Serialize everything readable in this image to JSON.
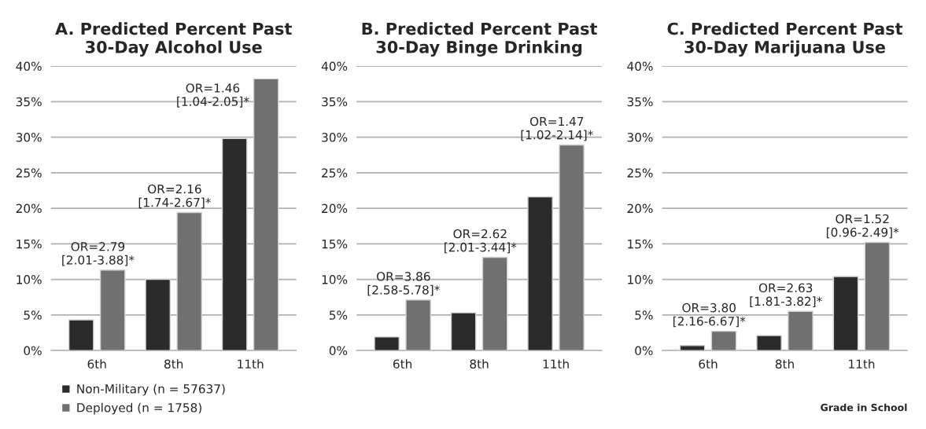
{
  "chart_data": [
    {
      "type": "bar",
      "title": "A. Predicted Percent Past\n30-Day Alcohol Use",
      "categories": [
        "6th",
        "8th",
        "11th"
      ],
      "series": [
        {
          "name": "Non-Military (n = 57637)",
          "color": "#2b2b2b",
          "values": [
            4.3,
            10.0,
            29.8
          ]
        },
        {
          "name": "Deployed (n = 1758)",
          "color": "#707070",
          "values": [
            11.3,
            19.4,
            38.2
          ]
        }
      ],
      "ylim": [
        0,
        40
      ],
      "yticks": [
        {
          "value": 0,
          "label": "0%"
        },
        {
          "value": 5,
          "label": "5%"
        },
        {
          "value": 10,
          "label": "10%"
        },
        {
          "value": 15,
          "label": "15%"
        },
        {
          "value": 20,
          "label": "20%"
        },
        {
          "value": 25,
          "label": "25%"
        },
        {
          "value": 30,
          "label": "30%"
        },
        {
          "value": 35,
          "label": "35%"
        },
        {
          "value": 40,
          "label": "40%"
        }
      ],
      "grid": "y",
      "legend": "bottom left",
      "annotations": [
        {
          "text": "OR=2.79\n[2.01-3.88]*",
          "x": "6th",
          "y": 11.3
        },
        {
          "text": "OR=2.16\n[1.74-2.67]*",
          "x": "8th",
          "y": 19.4
        },
        {
          "text": "OR=1.46\n[1.04-2.05]*",
          "x": "11th",
          "y": 38.2
        }
      ]
    },
    {
      "type": "bar",
      "title": "B. Predicted Percent Past\n30-Day Binge Drinking",
      "categories": [
        "6th",
        "8th",
        "11th"
      ],
      "series": [
        {
          "color": "#2b2b2b",
          "values": [
            1.9,
            5.3,
            21.6
          ]
        },
        {
          "color": "#707070",
          "values": [
            7.1,
            13.1,
            28.9
          ]
        }
      ],
      "ylim": [
        0,
        40
      ],
      "yticks": [
        {
          "value": 0,
          "label": "0%"
        },
        {
          "value": 5,
          "label": "5%"
        },
        {
          "value": 10,
          "label": "10%"
        },
        {
          "value": 15,
          "label": "15%"
        },
        {
          "value": 20,
          "label": "20%"
        },
        {
          "value": 25,
          "label": "25%"
        },
        {
          "value": 30,
          "label": "30%"
        },
        {
          "value": 35,
          "label": "35%"
        },
        {
          "value": 40,
          "label": "40%"
        }
      ],
      "grid": "y",
      "annotations": [
        {
          "text": "OR=3.86\n[2.58-5.78]*",
          "x": "6th",
          "y": 7.1
        },
        {
          "text": "OR=2.62\n[2.01-3.44]*",
          "x": "8th",
          "y": 13.1
        },
        {
          "text": "OR=1.47\n[1.02-2.14]*",
          "x": "11th",
          "y": 28.9
        }
      ]
    },
    {
      "type": "bar",
      "title": "C. Predicted Percent Past\n30-Day Marijuana Use",
      "categories": [
        "6th",
        "8th",
        "11th"
      ],
      "xlabel": "Grade in School",
      "series": [
        {
          "color": "#2b2b2b",
          "values": [
            0.7,
            2.1,
            10.4
          ]
        },
        {
          "color": "#707070",
          "values": [
            2.7,
            5.5,
            15.2
          ]
        }
      ],
      "ylim": [
        0,
        40
      ],
      "yticks": [
        {
          "value": 0,
          "label": "0%"
        },
        {
          "value": 5,
          "label": "5%"
        },
        {
          "value": 10,
          "label": "10%"
        },
        {
          "value": 15,
          "label": "15%"
        },
        {
          "value": 20,
          "label": "20%"
        },
        {
          "value": 25,
          "label": "25%"
        },
        {
          "value": 30,
          "label": "30%"
        },
        {
          "value": 35,
          "label": "35%"
        },
        {
          "value": 40,
          "label": "40%"
        }
      ],
      "grid": "y",
      "annotations": [
        {
          "text": "OR=3.80\n[2.16-6.67]*",
          "x": "6th",
          "y": 2.7
        },
        {
          "text": "OR=2.63\n[1.81-3.82]*",
          "x": "8th",
          "y": 5.5
        },
        {
          "text": "OR=1.52\n[0.96-2.49]*",
          "x": "11th",
          "y": 15.2
        }
      ]
    }
  ]
}
